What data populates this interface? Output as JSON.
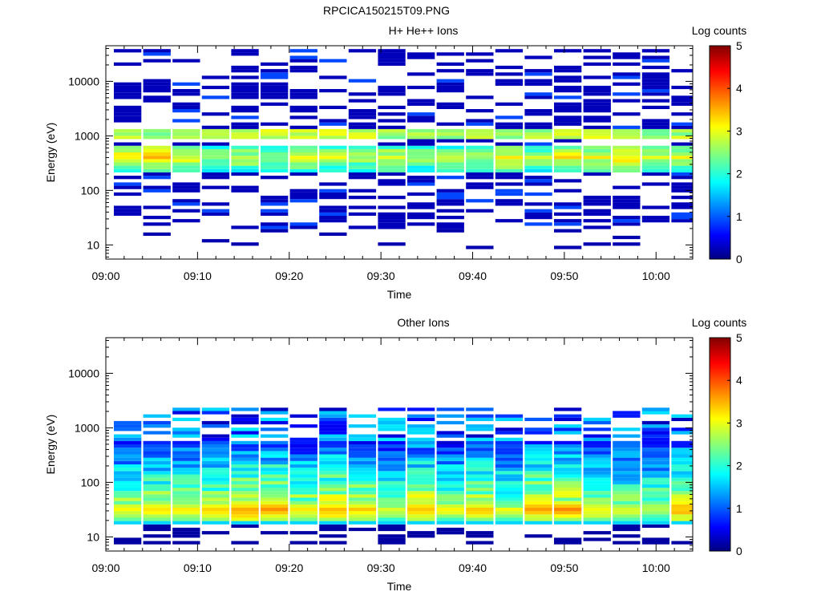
{
  "figure_title": "RPCICA150215T09.PNG",
  "chart_data": [
    {
      "type": "heatmap",
      "title": "H+ He++ Ions",
      "xlabel": "Time",
      "ylabel": "Energy (eV)",
      "x_ticks": [
        "09:00",
        "09:10",
        "09:20",
        "09:30",
        "09:40",
        "09:50",
        "10:00"
      ],
      "y_ticks": [
        "10",
        "100",
        "1000",
        "10000"
      ],
      "y_scale": "log",
      "ylim": [
        5.5,
        45000
      ],
      "xlim_minutes": [
        0,
        64
      ],
      "time_bins_minutes": [
        0,
        3.2,
        6.4,
        9.6,
        12.8,
        16,
        19.2,
        22.4,
        25.6,
        28.8,
        32,
        35.2,
        38.4,
        41.6,
        44.8,
        48,
        51.2,
        54.4,
        57.6,
        60.8
      ],
      "colorbar": {
        "label": "Log counts",
        "ticks": [
          "0",
          "1",
          "2",
          "3",
          "4",
          "5"
        ],
        "range": [
          0,
          5
        ]
      },
      "features": {
        "main_band_eV": [
          200,
          1300
        ],
        "peak_band_eV": [
          330,
          500
        ],
        "peak_band_log_counts": 3.4,
        "line_band_eV": 1000,
        "line_band_log_counts": 2.9
      }
    },
    {
      "type": "heatmap",
      "title": "Other Ions",
      "xlabel": "Time",
      "ylabel": "Energy (eV)",
      "x_ticks": [
        "09:00",
        "09:10",
        "09:20",
        "09:30",
        "09:40",
        "09:50",
        "10:00"
      ],
      "y_ticks": [
        "10",
        "100",
        "1000",
        "10000"
      ],
      "y_scale": "log",
      "ylim": [
        5.5,
        45000
      ],
      "xlim_minutes": [
        0,
        64
      ],
      "time_bins_minutes": [
        0,
        3.2,
        6.4,
        9.6,
        12.8,
        16,
        19.2,
        22.4,
        25.6,
        28.8,
        32,
        35.2,
        38.4,
        41.6,
        44.8,
        48,
        51.2,
        54.4,
        57.6,
        60.8
      ],
      "colorbar": {
        "label": "Log counts",
        "ticks": [
          "0",
          "1",
          "2",
          "3",
          "4",
          "5"
        ],
        "range": [
          0,
          5
        ]
      },
      "features": {
        "main_band_eV": [
          18,
          2100
        ],
        "peak_band_eV": [
          22,
          40
        ],
        "peak_band_log_counts": 3.3,
        "upper_cutoff_eV": 2100
      }
    }
  ],
  "colors": {
    "cmap": [
      "#000080",
      "#0000ff",
      "#00ffff",
      "#ffff00",
      "#ff0000",
      "#800000"
    ],
    "axis": "#000000",
    "background": "#ffffff"
  }
}
